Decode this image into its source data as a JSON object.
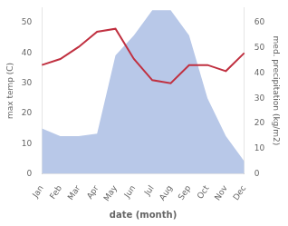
{
  "chart_data": {
    "type": "line",
    "xlabel": "date (month)",
    "ylabel": "max temp (C)",
    "y2label": "med. precipitation (kg/m2)",
    "categories": [
      "Jan",
      "Feb",
      "Mar",
      "Apr",
      "May",
      "Jun",
      "Jul",
      "Aug",
      "Sep",
      "Oct",
      "Nov",
      "Dec"
    ],
    "series": [
      {
        "type": "area",
        "color": "#b8c8e8",
        "axis": "y2",
        "values": [
          18,
          15,
          15,
          16,
          47,
          55,
          65,
          65,
          55,
          30,
          15,
          5
        ]
      },
      {
        "type": "line",
        "color": "#c03040",
        "values": [
          36,
          38,
          42,
          47,
          48,
          38,
          31,
          30,
          36,
          36,
          34,
          40
        ]
      }
    ],
    "ylim": [
      0,
      55
    ],
    "yticks": [
      0,
      10,
      20,
      30,
      40,
      50
    ],
    "y2lim": [
      0,
      66
    ],
    "y2ticks": [
      0,
      10,
      20,
      30,
      40,
      50,
      60
    ],
    "grid": false
  }
}
